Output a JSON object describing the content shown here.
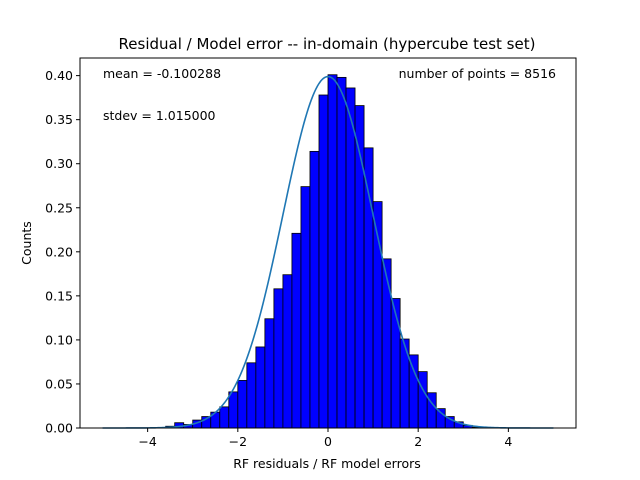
{
  "chart_data": {
    "type": "bar",
    "title": "Residual / Model error -- in-domain (hypercube test set)",
    "xlabel": "RF residuals / RF model errors",
    "ylabel": "Counts",
    "xlim": [
      -5.5,
      5.5
    ],
    "ylim": [
      0.0,
      0.42
    ],
    "xticks": [
      -4,
      -2,
      0,
      2,
      4
    ],
    "xtick_labels": [
      "−4",
      "−2",
      "0",
      "2",
      "4"
    ],
    "yticks": [
      0.0,
      0.05,
      0.1,
      0.15,
      0.2,
      0.25,
      0.3,
      0.35,
      0.4
    ],
    "ytick_labels": [
      "0.00",
      "0.05",
      "0.10",
      "0.15",
      "0.20",
      "0.25",
      "0.30",
      "0.35",
      "0.40"
    ],
    "annotations": {
      "mean": "mean = -0.100288",
      "stdev": "stdev = 1.015000",
      "npoints": "number of points = 8516"
    },
    "bin_width": 0.2,
    "bin_left_edges": [
      -3.6,
      -3.4,
      -3.2,
      -3.0,
      -2.8,
      -2.6,
      -2.4,
      -2.2,
      -2.0,
      -1.8,
      -1.6,
      -1.4,
      -1.2,
      -1.0,
      -0.8,
      -0.6,
      -0.4,
      -0.2,
      0.0,
      0.2,
      0.4,
      0.6,
      0.8,
      1.0,
      1.2,
      1.4,
      1.6,
      1.8,
      2.0,
      2.2,
      2.4,
      2.6,
      2.8,
      3.0,
      3.2
    ],
    "bin_values": [
      0.002,
      0.006,
      0.004,
      0.009,
      0.013,
      0.018,
      0.024,
      0.041,
      0.054,
      0.074,
      0.092,
      0.124,
      0.158,
      0.174,
      0.221,
      0.274,
      0.314,
      0.378,
      0.401,
      0.398,
      0.386,
      0.366,
      0.318,
      0.257,
      0.192,
      0.147,
      0.101,
      0.083,
      0.064,
      0.04,
      0.022,
      0.013,
      0.007,
      0.003,
      0.001
    ],
    "bar_color": "#0000ff",
    "bar_edge_color": "#000000",
    "curve": {
      "type": "normal_pdf",
      "mean": 0.0,
      "std": 1.0,
      "x_range": [
        -5.0,
        5.0
      ],
      "color": "#1f77b4"
    },
    "grid": false,
    "legend": "none"
  }
}
